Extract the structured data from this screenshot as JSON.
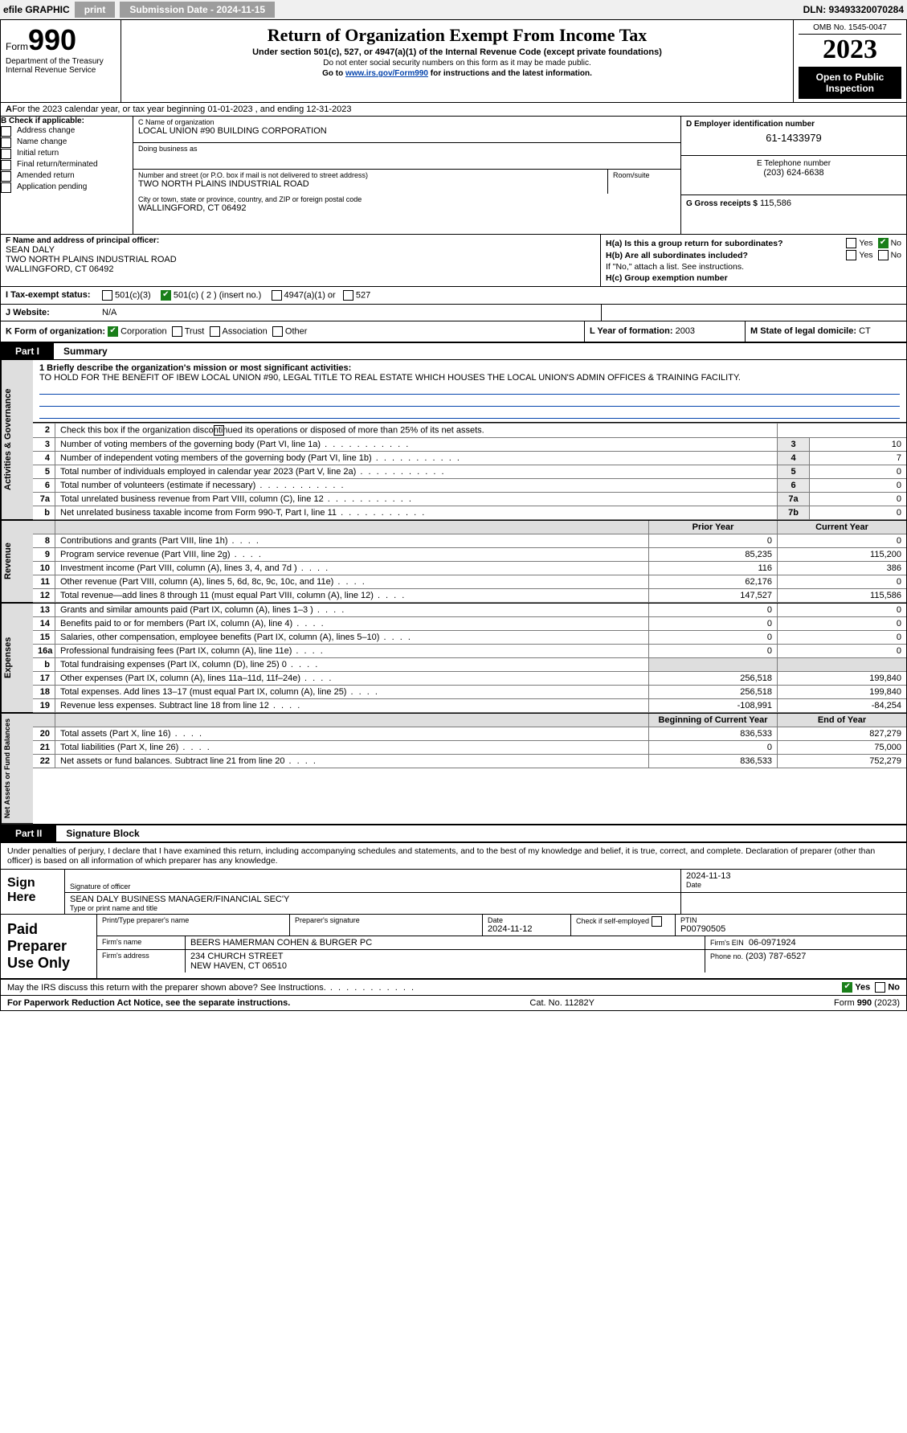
{
  "topbar": {
    "efile": "efile GRAPHIC",
    "print": "print",
    "sub_label": "Submission Date - 2024-11-15",
    "dln": "DLN: 93493320070284"
  },
  "header": {
    "form_label": "Form",
    "form_num": "990",
    "dept": "Department of the Treasury Internal Revenue Service",
    "title": "Return of Organization Exempt From Income Tax",
    "sub1": "Under section 501(c), 527, or 4947(a)(1) of the Internal Revenue Code (except private foundations)",
    "sub2": "Do not enter social security numbers on this form as it may be made public.",
    "sub3_prefix": "Go to ",
    "sub3_link": "www.irs.gov/Form990",
    "sub3_suffix": " for instructions and the latest information.",
    "omb": "OMB No. 1545-0047",
    "tax_year": "2023",
    "open_public": "Open to Public Inspection"
  },
  "period": "For the 2023 calendar year, or tax year beginning 01-01-2023   , and ending 12-31-2023",
  "box_b": {
    "label": "B Check if applicable:",
    "items": [
      "Address change",
      "Name change",
      "Initial return",
      "Final return/terminated",
      "Amended return",
      "Application pending"
    ]
  },
  "box_c": {
    "label": "C Name of organization",
    "name": "LOCAL UNION #90 BUILDING CORPORATION",
    "dba_label": "Doing business as",
    "addr_label": "Number and street (or P.O. box if mail is not delivered to street address)",
    "room_label": "Room/suite",
    "addr": "TWO NORTH PLAINS INDUSTRIAL ROAD",
    "city_label": "City or town, state or province, country, and ZIP or foreign postal code",
    "city": "WALLINGFORD, CT  06492"
  },
  "box_d": {
    "label": "D Employer identification number",
    "ein": "61-1433979",
    "phone_label": "E Telephone number",
    "phone": "(203) 624-6638",
    "gross_label": "G Gross receipts $",
    "gross": "115,586"
  },
  "box_f": {
    "label": "F  Name and address of principal officer:",
    "name": "SEAN DALY",
    "addr1": "TWO NORTH PLAINS INDUSTRIAL ROAD",
    "addr2": "WALLINGFORD, CT  06492"
  },
  "box_h": {
    "a_label": "H(a)  Is this a group return for subordinates?",
    "b_label": "H(b)  Are all subordinates included?",
    "b_note": "If \"No,\" attach a list. See instructions.",
    "c_label": "H(c)  Group exemption number"
  },
  "row_i": {
    "lbl": "I   Tax-exempt status:",
    "opt1": "501(c)(3)",
    "opt2": "501(c) ( 2 ) (insert no.)",
    "opt3": "4947(a)(1) or",
    "opt4": "527"
  },
  "row_j": {
    "lbl": "J   Website:",
    "val": "N/A"
  },
  "row_k": {
    "k_label": "K Form of organization:",
    "k_opts": [
      "Corporation",
      "Trust",
      "Association",
      "Other"
    ],
    "l_label": "L Year of formation:",
    "l_val": "2003",
    "m_label": "M State of legal domicile:",
    "m_val": "CT"
  },
  "part1": {
    "label": "Part I",
    "title": "Summary",
    "side_tabs": [
      "Activities & Governance",
      "Revenue",
      "Expenses",
      "Net Assets or Fund Balances"
    ],
    "line1_label": "1  Briefly describe the organization's mission or most significant activities:",
    "mission": "TO HOLD FOR THE BENEFIT OF IBEW LOCAL UNION #90, LEGAL TITLE TO REAL ESTATE WHICH HOUSES THE LOCAL UNION'S ADMIN OFFICES & TRAINING FACILITY.",
    "line2": "Check this box      if the organization discontinued its operations or disposed of more than 25% of its net assets.",
    "rows_gov": [
      {
        "n": "3",
        "desc": "Number of voting members of the governing body (Part VI, line 1a)",
        "c": "3",
        "v": "10"
      },
      {
        "n": "4",
        "desc": "Number of independent voting members of the governing body (Part VI, line 1b)",
        "c": "4",
        "v": "7"
      },
      {
        "n": "5",
        "desc": "Total number of individuals employed in calendar year 2023 (Part V, line 2a)",
        "c": "5",
        "v": "0"
      },
      {
        "n": "6",
        "desc": "Total number of volunteers (estimate if necessary)",
        "c": "6",
        "v": "0"
      },
      {
        "n": "7a",
        "desc": "Total unrelated business revenue from Part VIII, column (C), line 12",
        "c": "7a",
        "v": "0"
      },
      {
        "n": "b",
        "desc": "Net unrelated business taxable income from Form 990-T, Part I, line 11",
        "c": "7b",
        "v": "0"
      }
    ],
    "hdr_prior": "Prior Year",
    "hdr_cur": "Current Year",
    "rows_rev": [
      {
        "n": "8",
        "desc": "Contributions and grants (Part VIII, line 1h)",
        "p": "0",
        "c": "0"
      },
      {
        "n": "9",
        "desc": "Program service revenue (Part VIII, line 2g)",
        "p": "85,235",
        "c": "115,200"
      },
      {
        "n": "10",
        "desc": "Investment income (Part VIII, column (A), lines 3, 4, and 7d )",
        "p": "116",
        "c": "386"
      },
      {
        "n": "11",
        "desc": "Other revenue (Part VIII, column (A), lines 5, 6d, 8c, 9c, 10c, and 11e)",
        "p": "62,176",
        "c": "0"
      },
      {
        "n": "12",
        "desc": "Total revenue—add lines 8 through 11 (must equal Part VIII, column (A), line 12)",
        "p": "147,527",
        "c": "115,586"
      }
    ],
    "rows_exp": [
      {
        "n": "13",
        "desc": "Grants and similar amounts paid (Part IX, column (A), lines 1–3 )",
        "p": "0",
        "c": "0"
      },
      {
        "n": "14",
        "desc": "Benefits paid to or for members (Part IX, column (A), line 4)",
        "p": "0",
        "c": "0"
      },
      {
        "n": "15",
        "desc": "Salaries, other compensation, employee benefits (Part IX, column (A), lines 5–10)",
        "p": "0",
        "c": "0"
      },
      {
        "n": "16a",
        "desc": "Professional fundraising fees (Part IX, column (A), line 11e)",
        "p": "0",
        "c": "0"
      },
      {
        "n": "b",
        "desc": "Total fundraising expenses (Part IX, column (D), line 25) 0",
        "p": "",
        "c": ""
      },
      {
        "n": "17",
        "desc": "Other expenses (Part IX, column (A), lines 11a–11d, 11f–24e)",
        "p": "256,518",
        "c": "199,840"
      },
      {
        "n": "18",
        "desc": "Total expenses. Add lines 13–17 (must equal Part IX, column (A), line 25)",
        "p": "256,518",
        "c": "199,840"
      },
      {
        "n": "19",
        "desc": "Revenue less expenses. Subtract line 18 from line 12",
        "p": "-108,991",
        "c": "-84,254"
      }
    ],
    "hdr_boy": "Beginning of Current Year",
    "hdr_eoy": "End of Year",
    "rows_net": [
      {
        "n": "20",
        "desc": "Total assets (Part X, line 16)",
        "p": "836,533",
        "c": "827,279"
      },
      {
        "n": "21",
        "desc": "Total liabilities (Part X, line 26)",
        "p": "0",
        "c": "75,000"
      },
      {
        "n": "22",
        "desc": "Net assets or fund balances. Subtract line 21 from line 20",
        "p": "836,533",
        "c": "752,279"
      }
    ]
  },
  "part2": {
    "label": "Part II",
    "title": "Signature Block",
    "text": "Under penalties of perjury, I declare that I have examined this return, including accompanying schedules and statements, and to the best of my knowledge and belief, it is true, correct, and complete. Declaration of preparer (other than officer) is based on all information of which preparer has any knowledge."
  },
  "sign": {
    "lbl": "Sign Here",
    "sig_of_officer": "Signature of officer",
    "date": "2024-11-13",
    "date_lbl": "Date",
    "typed_name": "SEAN DALY BUSINESS MANAGER/FINANCIAL SEC'Y",
    "typed_lbl": "Type or print name and title"
  },
  "prep": {
    "lbl": "Paid Preparer Use Only",
    "r1": {
      "name_lbl": "Print/Type preparer's name",
      "sig_lbl": "Preparer's signature",
      "date_lbl": "Date",
      "date": "2024-11-12",
      "check_lbl": "Check       if self-employed",
      "ptin_lbl": "PTIN",
      "ptin": "P00790505"
    },
    "r2": {
      "firm_name_lbl": "Firm's name",
      "firm_name": "BEERS HAMERMAN COHEN & BURGER PC",
      "ein_lbl": "Firm's EIN",
      "ein": "06-0971924"
    },
    "r3": {
      "firm_addr_lbl": "Firm's address",
      "firm_addr1": "234 CHURCH STREET",
      "firm_addr2": "NEW HAVEN, CT  06510",
      "phone_lbl": "Phone no.",
      "phone": "(203) 787-6527"
    }
  },
  "discuss": "May the IRS discuss this return with the preparer shown above? See Instructions.",
  "footer": {
    "left": "For Paperwork Reduction Act Notice, see the separate instructions.",
    "cat": "Cat. No. 11282Y",
    "form": "Form 990 (2023)"
  },
  "yes": "Yes",
  "no": "No"
}
